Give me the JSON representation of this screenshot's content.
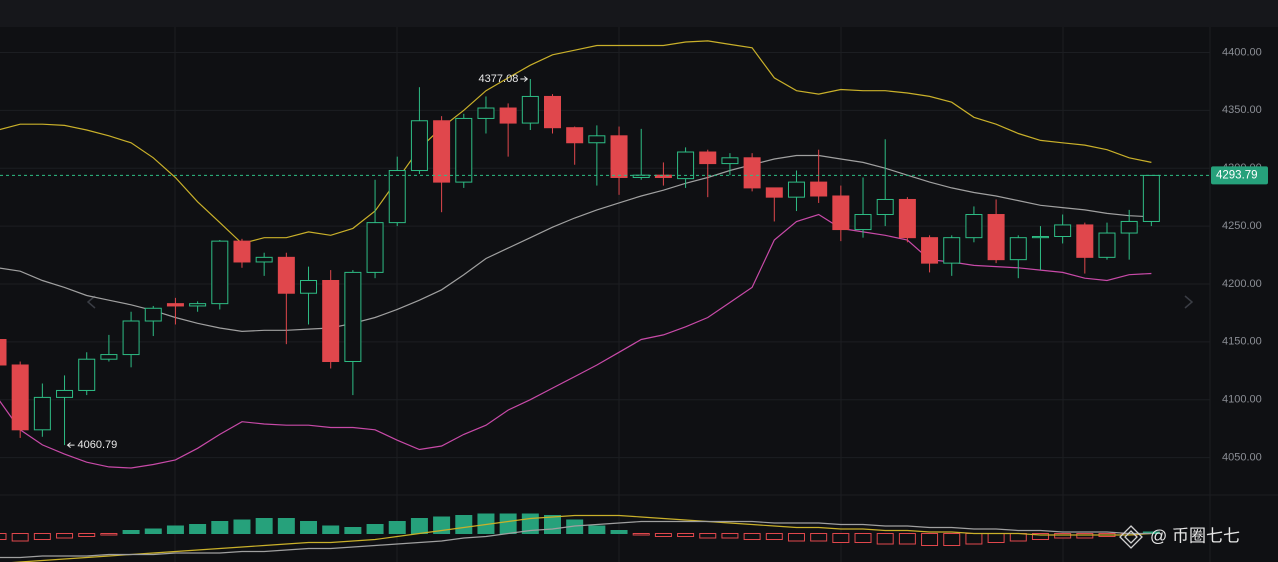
{
  "chart_data": [
    {
      "type": "candlestick",
      "open": [
        4152,
        4130,
        4074,
        4102,
        4108,
        4135,
        4139,
        4168,
        4183,
        4181,
        4183,
        4237,
        4219,
        4223,
        4192,
        4203,
        4133,
        4210,
        4253,
        4298,
        4341,
        4288,
        4343,
        4352,
        4339,
        4362,
        4335,
        4322,
        4328,
        4292,
        4294,
        4291,
        4314,
        4304,
        4309,
        4283,
        4275,
        4288,
        4276,
        4247,
        4260,
        4273,
        4240,
        4218,
        4240,
        4260,
        4221,
        4240,
        4241,
        4251,
        4223,
        4244,
        4254
      ],
      "high": [
        4156,
        4133,
        4114,
        4121,
        4141,
        4156,
        4176,
        4181,
        4188,
        4185,
        4238,
        4239,
        4227,
        4227,
        4215,
        4212,
        4212,
        4290,
        4310,
        4370,
        4345,
        4347,
        4362,
        4356,
        4377.08,
        4364,
        4336,
        4337,
        4336,
        4334,
        4305,
        4318,
        4316,
        4313,
        4313,
        4283,
        4298,
        4316,
        4285,
        4292,
        4325,
        4275,
        4242,
        4242,
        4267,
        4273,
        4242,
        4250,
        4260,
        4253,
        4253,
        4264,
        4294
      ],
      "low": [
        4126,
        4067,
        4068,
        4060.79,
        4104,
        4133,
        4128,
        4155,
        4165,
        4176,
        4178,
        4214,
        4207,
        4148,
        4165,
        4127,
        4104,
        4205,
        4250,
        4295,
        4262,
        4283,
        4330,
        4310,
        4333,
        4330,
        4303,
        4285,
        4277,
        4290,
        4285,
        4283,
        4275,
        4294,
        4280,
        4254,
        4263,
        4270,
        4237,
        4240,
        4250,
        4236,
        4210,
        4207,
        4236,
        4218,
        4205,
        4212,
        4235,
        4209,
        4221,
        4221,
        4250
      ],
      "close": [
        4130,
        4074,
        4102,
        4108,
        4135,
        4139,
        4168,
        4179,
        4181,
        4183,
        4237,
        4219,
        4223,
        4192,
        4203,
        4133,
        4210,
        4253,
        4298,
        4341,
        4288,
        4343,
        4352,
        4339,
        4362,
        4335,
        4322,
        4328,
        4292,
        4294,
        4292,
        4314,
        4304,
        4309,
        4283,
        4275,
        4288,
        4276,
        4247,
        4260,
        4273,
        4240,
        4218,
        4240,
        4260,
        4221,
        4240,
        4241,
        4251,
        4223,
        4244,
        4254,
        4293.79
      ],
      "up_color": "#2ebd85",
      "down_color": "#e0474c",
      "series": [
        {
          "color": "#c9b02a",
          "values": [
            4333,
            4338,
            4338,
            4337,
            4333,
            4328,
            4322,
            4309,
            4292,
            4271,
            4253,
            4235,
            4240,
            4240,
            4245,
            4242,
            4248,
            4263,
            4290,
            4317,
            4335,
            4350,
            4367,
            4378,
            4389,
            4398,
            4402,
            4406,
            4406,
            4406,
            4406,
            4409,
            4410,
            4407,
            4404,
            4378,
            4367,
            4364,
            4368,
            4367,
            4367,
            4365,
            4362,
            4357,
            4344,
            4338,
            4330,
            4324,
            4322,
            4320,
            4316,
            4309,
            4305
          ]
        },
        {
          "color": "#a0a0a0",
          "values": [
            4214,
            4211,
            4203,
            4197,
            4190,
            4186,
            4182,
            4177,
            4171,
            4166,
            4162,
            4159,
            4160,
            4160,
            4161,
            4162,
            4166,
            4171,
            4178,
            4186,
            4195,
            4208,
            4222,
            4231,
            4240,
            4249,
            4257,
            4264,
            4270,
            4276,
            4281,
            4287,
            4292,
            4298,
            4303,
            4308,
            4311,
            4311,
            4308,
            4305,
            4300,
            4294,
            4288,
            4283,
            4279,
            4276,
            4272,
            4268,
            4266,
            4264,
            4261,
            4259,
            4258
          ]
        },
        {
          "color": "#c84aa8",
          "values": [
            4101,
            4074,
            4061,
            4053,
            4046,
            4042,
            4041,
            4044,
            4048,
            4058,
            4070,
            4081,
            4079,
            4078,
            4078,
            4076,
            4076,
            4074,
            4065,
            4057,
            4060,
            4070,
            4078,
            4091,
            4100,
            4110,
            4120,
            4130,
            4141,
            4152,
            4156,
            4163,
            4171,
            4184,
            4197,
            4238,
            4254,
            4260,
            4248,
            4245,
            4242,
            4238,
            4221,
            4219,
            4216,
            4215,
            4214,
            4212,
            4210,
            4205,
            4203,
            4208,
            4209
          ]
        }
      ],
      "ylim": [
        4022,
        4422
      ],
      "yticks": [
        {
          "value": 4050,
          "label": "4050.00"
        },
        {
          "value": 4100,
          "label": "4100.00"
        },
        {
          "value": 4150,
          "label": "4150.00"
        },
        {
          "value": 4200,
          "label": "4200.00"
        },
        {
          "value": 4250,
          "label": "4250.00"
        },
        {
          "value": 4300,
          "label": "4300.00"
        },
        {
          "value": 4350,
          "label": "4350.00"
        },
        {
          "value": 4400,
          "label": "4400.00"
        }
      ],
      "grid": true,
      "watermark": "@ 币圈七七"
    },
    {
      "type": "macd",
      "values": [
        -4,
        -5,
        -4,
        -3,
        -2,
        -1,
        2,
        3,
        5,
        6,
        8,
        9,
        10,
        10,
        8,
        5,
        4,
        6,
        8,
        10,
        11,
        12,
        13,
        13,
        13,
        12,
        9,
        5,
        2,
        -1,
        -2,
        -2,
        -3,
        -3,
        -4,
        -4,
        -5,
        -5,
        -6,
        -6,
        -7,
        -7,
        -8,
        -8,
        -7,
        -6,
        -5,
        -4,
        -3,
        -3,
        -2,
        -1,
        1
      ],
      "up_color": "#26a17b",
      "down_color": "#e0474c",
      "series": [
        {
          "color": "#c9b02a",
          "values": [
            -20,
            -19,
            -18,
            -17,
            -16,
            -15,
            -14,
            -13,
            -12,
            -11,
            -10,
            -9,
            -8,
            -7,
            -6,
            -6,
            -5,
            -4,
            -2,
            0,
            2,
            4,
            6,
            8,
            10,
            11,
            12,
            12,
            12,
            11,
            10,
            9,
            8,
            7,
            6,
            5,
            4,
            4,
            3,
            3,
            2,
            2,
            1,
            1,
            0,
            0,
            0,
            -1,
            -1,
            -1,
            -1,
            -1,
            0
          ]
        },
        {
          "color": "#a0a0a0",
          "values": [
            -16,
            -16,
            -15,
            -15,
            -15,
            -14,
            -14,
            -14,
            -13,
            -13,
            -13,
            -12,
            -12,
            -11,
            -10,
            -10,
            -9,
            -8,
            -7,
            -6,
            -5,
            -3,
            -2,
            0,
            2,
            3,
            5,
            6,
            7,
            8,
            8,
            8,
            8,
            8,
            8,
            7,
            7,
            7,
            6,
            6,
            5,
            5,
            4,
            4,
            3,
            3,
            2,
            2,
            1,
            1,
            1,
            0,
            0
          ]
        }
      ],
      "ylim": [
        -19,
        25
      ]
    }
  ]
}
